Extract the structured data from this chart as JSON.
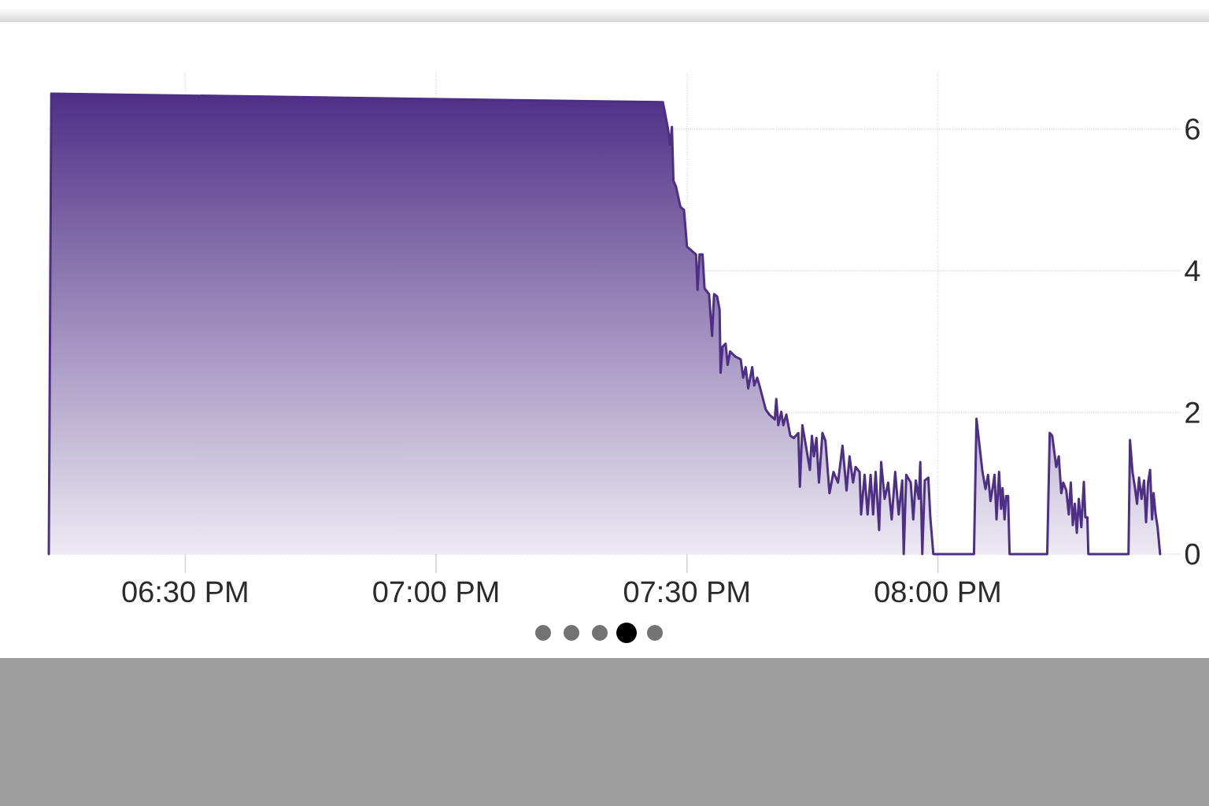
{
  "chart_data": {
    "type": "area",
    "color": "#4E2F86",
    "x": [
      18.228,
      18.233,
      19.452,
      19.462,
      19.466,
      19.47,
      19.473,
      19.478,
      19.487,
      19.494,
      19.5,
      19.518,
      19.521,
      19.525,
      19.531,
      19.535,
      19.544,
      19.55,
      19.554,
      19.56,
      19.565,
      19.567,
      19.571,
      19.577,
      19.581,
      19.586,
      19.596,
      19.607,
      19.612,
      19.617,
      19.622,
      19.63,
      19.634,
      19.64,
      19.646,
      19.657,
      19.664,
      19.675,
      19.678,
      19.682,
      19.688,
      19.692,
      19.698,
      19.706,
      19.713,
      19.722,
      19.725,
      19.73,
      19.737,
      19.745,
      19.749,
      19.753,
      19.758,
      19.763,
      19.77,
      19.776,
      19.784,
      19.792,
      19.801,
      19.81,
      19.818,
      19.824,
      19.831,
      19.836,
      19.844,
      19.847,
      19.854,
      19.86,
      19.866,
      19.871,
      19.876,
      19.883,
      19.887,
      19.894,
      19.901,
      19.908,
      19.915,
      19.922,
      19.929,
      19.932,
      19.937,
      19.946,
      19.951,
      19.956,
      19.962,
      19.965,
      19.969,
      19.974,
      19.981,
      19.985,
      19.991,
      20.072,
      20.077,
      20.089,
      20.095,
      20.1,
      20.105,
      20.11,
      20.113,
      20.117,
      20.122,
      20.126,
      20.129,
      20.133,
      20.136,
      20.14,
      20.143,
      20.218,
      20.223,
      20.228,
      20.236,
      20.241,
      20.246,
      20.25,
      20.256,
      20.261,
      20.265,
      20.269,
      20.273,
      20.277,
      20.281,
      20.286,
      20.291,
      20.294,
      20.298,
      20.3,
      20.38,
      20.383,
      20.388,
      20.393,
      20.397,
      20.401,
      20.406,
      20.411,
      20.415,
      20.419,
      20.423,
      20.427,
      20.43,
      20.434,
      20.438,
      20.443
    ],
    "values": [
      0,
      6.5,
      6.38,
      6.01,
      5.78,
      6.03,
      5.27,
      5.19,
      4.9,
      4.86,
      4.34,
      4.23,
      3.73,
      4.23,
      4.23,
      3.75,
      3.67,
      3.08,
      3.67,
      3.64,
      3.45,
      2.56,
      2.93,
      2.97,
      2.67,
      2.86,
      2.79,
      2.75,
      2.49,
      2.64,
      2.34,
      2.64,
      2.38,
      2.49,
      2.34,
      2.04,
      1.97,
      1.9,
      2.19,
      1.82,
      2.01,
      1.82,
      1.97,
      1.67,
      1.64,
      1.71,
      0.95,
      1.82,
      1.53,
      1.19,
      1.67,
      1.38,
      1.64,
      1.01,
      1.71,
      1.6,
      0.86,
      1.16,
      1.01,
      1.53,
      0.9,
      1.38,
      1.01,
      1.23,
      1.16,
      0.56,
      1.12,
      0.56,
      1.12,
      0.56,
      1.16,
      0.34,
      1.3,
      0.78,
      1.01,
      0.49,
      1.16,
      0.56,
      1.04,
      0,
      1.12,
      1.01,
      0.49,
      1.04,
      0.78,
      1.3,
      0,
      1.04,
      1.08,
      0.52,
      0,
      0,
      1.91,
      1.16,
      0.92,
      1.12,
      0.75,
      0.97,
      1.12,
      0.49,
      1.16,
      0.64,
      0.93,
      0.49,
      0.82,
      0.82,
      0,
      0,
      1.71,
      1.67,
      1.23,
      1.38,
      0.86,
      1.01,
      0.9,
      0.56,
      1.01,
      0.41,
      0.71,
      0.3,
      0.78,
      0.38,
      1.02,
      0.52,
      0.52,
      0,
      0,
      1.61,
      1.16,
      0.93,
      0.71,
      1.08,
      0.78,
      1.04,
      0.45,
      1.01,
      1.19,
      0.49,
      0.86,
      0.56,
      0.38,
      0
    ],
    "xlim": [
      18.228,
      20.484
    ],
    "ylim": [
      0,
      6.8
    ],
    "xticks": [
      {
        "value": 18.5,
        "label": "06:30 PM"
      },
      {
        "value": 19.0,
        "label": "07:00 PM"
      },
      {
        "value": 19.5,
        "label": "07:30 PM"
      },
      {
        "value": 20.0,
        "label": "08:00 PM"
      }
    ],
    "yticks": [
      0,
      2,
      4,
      6
    ],
    "grid": true
  }
}
